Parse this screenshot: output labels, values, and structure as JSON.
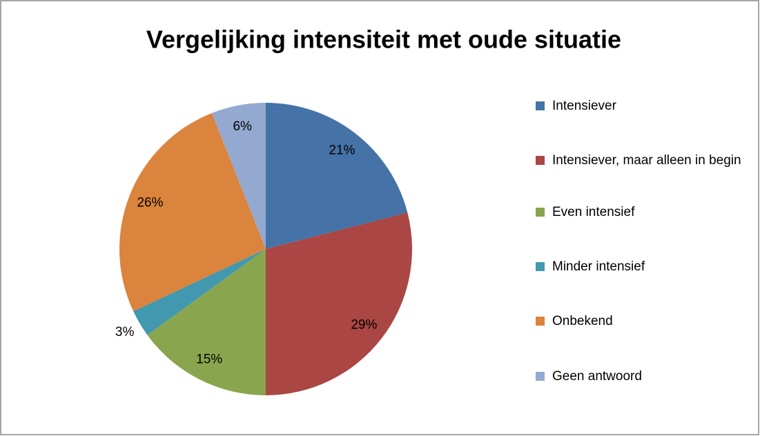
{
  "chart_data": {
    "type": "pie",
    "title": "Vergelijking intensiteit met oude situatie",
    "categories": [
      "Intensiever",
      "Intensiever, maar alleen in begin",
      "Even intensief",
      "Minder intensief",
      "Onbekend",
      "Geen antwoord"
    ],
    "values": [
      21,
      29,
      15,
      3,
      26,
      6
    ],
    "value_labels": [
      "21%",
      "29%",
      "15%",
      "3%",
      "26%",
      "6%"
    ],
    "colors": [
      "#4572a7",
      "#aa4643",
      "#89a54e",
      "#4198af",
      "#db843d",
      "#93a9cf"
    ],
    "legend": "right"
  }
}
